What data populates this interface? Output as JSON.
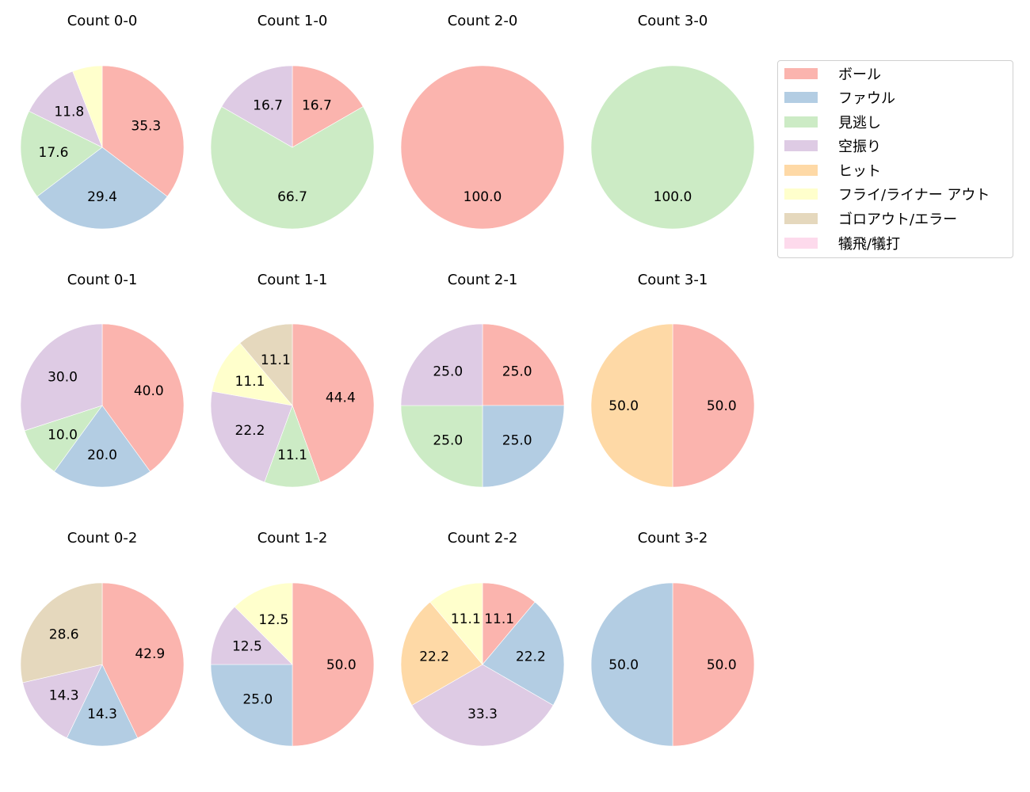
{
  "chart_data": {
    "type": "pie",
    "categories": [
      "ボール",
      "ファウル",
      "見逃し",
      "空振り",
      "ヒット",
      "フライ/ライナー アウト",
      "ゴロアウト/エラー",
      "犠飛/犠打"
    ],
    "colors": [
      "#fbb4ae",
      "#b3cde3",
      "#ccebc5",
      "#decbe4",
      "#fed9a6",
      "#ffffcc",
      "#e5d8bd",
      "#fddaec"
    ],
    "legend_position": "upper right",
    "charts": [
      {
        "title": "Count 0-0",
        "values": [
          35.3,
          29.4,
          17.6,
          11.8,
          0,
          5.9,
          0,
          0
        ],
        "labels": [
          "35.3",
          "29.4",
          "17.6",
          "11.8",
          "",
          "",
          "",
          ""
        ]
      },
      {
        "title": "Count 1-0",
        "values": [
          16.7,
          0,
          66.7,
          16.7,
          0,
          0,
          0,
          0
        ],
        "labels": [
          "16.7",
          "",
          "66.7",
          "16.7",
          "",
          "",
          "",
          ""
        ]
      },
      {
        "title": "Count 2-0",
        "values": [
          100.0,
          0,
          0,
          0,
          0,
          0,
          0,
          0
        ],
        "labels": [
          "100.0",
          "",
          "",
          "",
          "",
          "",
          "",
          ""
        ]
      },
      {
        "title": "Count 3-0",
        "values": [
          0,
          0,
          100.0,
          0,
          0,
          0,
          0,
          0
        ],
        "labels": [
          "",
          "",
          "100.0",
          "",
          "",
          "",
          "",
          ""
        ]
      },
      {
        "title": "Count 0-1",
        "values": [
          40.0,
          20.0,
          10.0,
          30.0,
          0,
          0,
          0,
          0
        ],
        "labels": [
          "40.0",
          "20.0",
          "10.0",
          "30.0",
          "",
          "",
          "",
          ""
        ]
      },
      {
        "title": "Count 1-1",
        "values": [
          44.4,
          0,
          11.1,
          22.2,
          0,
          11.1,
          11.1,
          0
        ],
        "labels": [
          "44.4",
          "",
          "11.1",
          "22.2",
          "",
          "11.1",
          "11.1",
          ""
        ]
      },
      {
        "title": "Count 2-1",
        "values": [
          25.0,
          25.0,
          25.0,
          25.0,
          0,
          0,
          0,
          0
        ],
        "labels": [
          "25.0",
          "25.0",
          "25.0",
          "25.0",
          "",
          "",
          "",
          ""
        ]
      },
      {
        "title": "Count 3-1",
        "values": [
          50.0,
          0,
          0,
          0,
          50.0,
          0,
          0,
          0
        ],
        "labels": [
          "50.0",
          "",
          "",
          "",
          "50.0",
          "",
          "",
          ""
        ]
      },
      {
        "title": "Count 0-2",
        "values": [
          42.9,
          14.3,
          0,
          14.3,
          0,
          0,
          28.6,
          0
        ],
        "labels": [
          "42.9",
          "14.3",
          "",
          "14.3",
          "",
          "",
          "28.6",
          ""
        ]
      },
      {
        "title": "Count 1-2",
        "values": [
          50.0,
          25.0,
          0,
          12.5,
          0,
          12.5,
          0,
          0
        ],
        "labels": [
          "50.0",
          "25.0",
          "",
          "12.5",
          "",
          "12.5",
          "",
          ""
        ]
      },
      {
        "title": "Count 2-2",
        "values": [
          11.1,
          22.2,
          0,
          33.3,
          22.2,
          11.1,
          0,
          0
        ],
        "labels": [
          "11.1",
          "22.2",
          "",
          "33.3",
          "22.2",
          "11.1",
          "",
          ""
        ]
      },
      {
        "title": "Count 3-2",
        "values": [
          50.0,
          50.0,
          0,
          0,
          0,
          0,
          0,
          0
        ],
        "labels": [
          "50.0",
          "50.0",
          "",
          "",
          "",
          "",
          "",
          ""
        ]
      }
    ]
  },
  "legend": {
    "items": [
      {
        "label": "ボール",
        "color": "#fbb4ae"
      },
      {
        "label": "ファウル",
        "color": "#b3cde3"
      },
      {
        "label": "見逃し",
        "color": "#ccebc5"
      },
      {
        "label": "空振り",
        "color": "#decbe4"
      },
      {
        "label": "ヒット",
        "color": "#fed9a6"
      },
      {
        "label": "フライ/ライナー アウト",
        "color": "#ffffcc"
      },
      {
        "label": "ゴロアウト/エラー",
        "color": "#e5d8bd"
      },
      {
        "label": "犠飛/犠打",
        "color": "#fddaec"
      }
    ]
  }
}
